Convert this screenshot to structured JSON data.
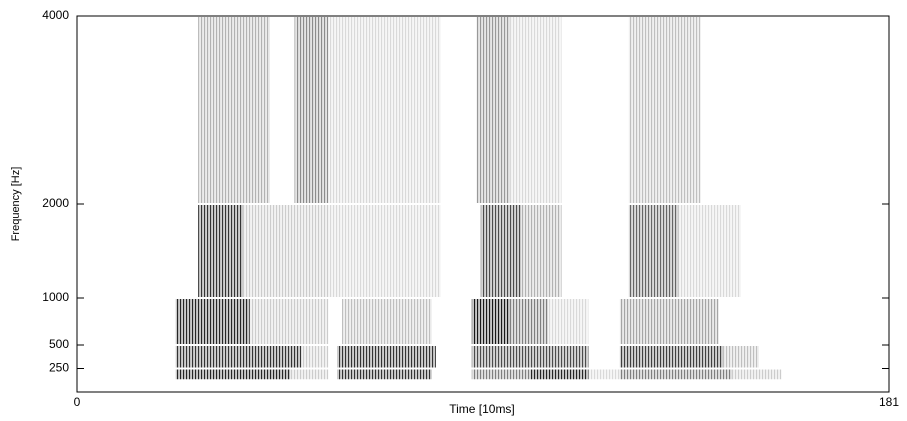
{
  "chart_data": {
    "type": "spectrogram",
    "xlabel": "Time [10ms]",
    "ylabel": "Frequency [Hz]",
    "xlim": [
      0,
      181
    ],
    "xticks": [
      0,
      181
    ],
    "ylim": [
      0,
      4000
    ],
    "yticks": [
      250,
      500,
      1000,
      2000,
      4000
    ],
    "color": "#000000",
    "bands": [
      {
        "low": 125,
        "high": 250,
        "segments": [
          [
            22,
            47.5,
            0.85
          ],
          [
            47.5,
            56,
            0.2
          ],
          [
            58,
            79,
            0.8
          ],
          [
            88,
            101,
            0.5
          ],
          [
            101,
            114,
            0.85
          ],
          [
            114,
            121,
            0.15
          ],
          [
            121,
            146,
            0.5
          ],
          [
            146,
            157,
            0.2
          ]
        ]
      },
      {
        "low": 250,
        "high": 500,
        "segments": [
          [
            22,
            50,
            0.8
          ],
          [
            50,
            56,
            0.2
          ],
          [
            58,
            80,
            0.8
          ],
          [
            88,
            114,
            0.7
          ],
          [
            121,
            144,
            0.75
          ],
          [
            144,
            152,
            0.25
          ]
        ]
      },
      {
        "low": 500,
        "high": 1000,
        "segments": [
          [
            22,
            38.5,
            0.85
          ],
          [
            38.5,
            56,
            0.2
          ],
          [
            59,
            79,
            0.25
          ],
          [
            88,
            96.5,
            0.9
          ],
          [
            96.5,
            105,
            0.5
          ],
          [
            105,
            114,
            0.15
          ],
          [
            121,
            143,
            0.35
          ]
        ]
      },
      {
        "low": 1000,
        "high": 2000,
        "segments": [
          [
            27,
            37,
            0.8
          ],
          [
            37,
            56,
            0.2
          ],
          [
            56,
            81,
            0.15
          ],
          [
            90,
            99,
            0.7
          ],
          [
            99,
            108,
            0.3
          ],
          [
            123,
            134,
            0.6
          ],
          [
            134,
            148,
            0.15
          ]
        ]
      },
      {
        "low": 2000,
        "high": 4000,
        "segments": [
          [
            27,
            43,
            0.3
          ],
          [
            48.5,
            56,
            0.45
          ],
          [
            56,
            81,
            0.15
          ],
          [
            89,
            96.5,
            0.4
          ],
          [
            96.5,
            108,
            0.15
          ],
          [
            123,
            139,
            0.25
          ]
        ]
      }
    ]
  }
}
